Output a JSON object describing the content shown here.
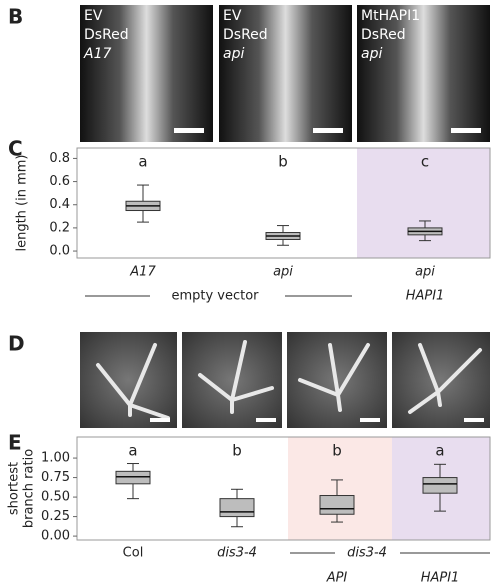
{
  "panel_labels": [
    "B",
    "C",
    "D",
    "E"
  ],
  "photos_B": [
    {
      "lines": [
        "EV",
        "DsRed",
        "A17"
      ]
    },
    {
      "lines": [
        "EV",
        "DsRed",
        "api"
      ]
    },
    {
      "lines": [
        "MtHAPI1",
        "DsRed",
        "api"
      ]
    }
  ],
  "chart_data": [
    {
      "type": "box",
      "ylabel": "length (in mm)",
      "categories": [
        "A17",
        "api",
        "api"
      ],
      "group_labels": [
        "empty vector",
        "HAPI1"
      ],
      "letters": [
        "a",
        "b",
        "c"
      ],
      "boxes": [
        {
          "whislo": 0.25,
          "q1": 0.35,
          "med": 0.39,
          "q3": 0.43,
          "whishi": 0.57
        },
        {
          "whislo": 0.05,
          "q1": 0.1,
          "med": 0.13,
          "q3": 0.16,
          "whishi": 0.22
        },
        {
          "whislo": 0.09,
          "q1": 0.14,
          "med": 0.17,
          "q3": 0.2,
          "whishi": 0.26
        }
      ],
      "color": "#bdbdbd",
      "ylim": [
        -0.06,
        0.89
      ],
      "yticks": [
        {
          "value": 0,
          "label": "0.0"
        },
        0.2,
        0.4,
        0.6,
        0.8
      ]
    },
    {
      "type": "box",
      "ylabel": [
        "shortest",
        "branch ratio"
      ],
      "categories": [
        "Col",
        "dis3-4",
        "API",
        "HAPI1"
      ],
      "group_labels": [
        "dis3-4"
      ],
      "letters": [
        "a",
        "b",
        "b",
        "a"
      ],
      "boxes": [
        {
          "whislo": 0.48,
          "q1": 0.67,
          "med": 0.76,
          "q3": 0.83,
          "whishi": 0.93
        },
        {
          "whislo": 0.12,
          "q1": 0.25,
          "med": 0.31,
          "q3": 0.48,
          "whishi": 0.6
        },
        {
          "whislo": 0.18,
          "q1": 0.28,
          "med": 0.35,
          "q3": 0.52,
          "whishi": 0.72
        },
        {
          "whislo": 0.32,
          "q1": 0.55,
          "med": 0.67,
          "q3": 0.75,
          "whishi": 0.92
        }
      ],
      "color": "#bdbdbd",
      "ylim": [
        -0.05,
        1.27
      ],
      "yticks": [
        {
          "value": 0,
          "label": "0.00"
        },
        {
          "value": 0.25,
          "label": "0.25"
        },
        {
          "value": 0.5,
          "label": "0.50"
        },
        {
          "value": 0.75,
          "label": "0.75"
        },
        {
          "value": 1,
          "label": "1.00"
        }
      ]
    }
  ]
}
